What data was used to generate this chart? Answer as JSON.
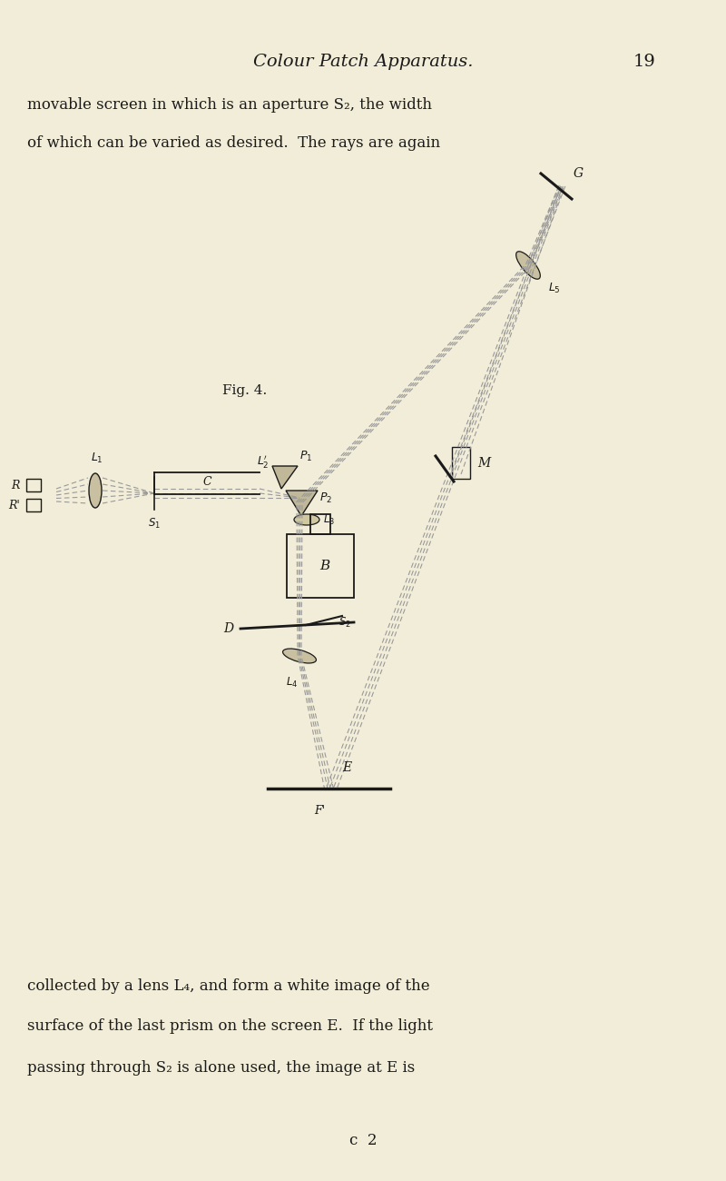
{
  "bg_color": "#f2edd8",
  "line_color": "#1a1a1a",
  "dashed_color": "#999999",
  "title_italic": "Colour Patch Apparatus.",
  "page_number": "19",
  "fig4_label": "Fig. 4.",
  "text_line1": "movable screen in which is an aperture S₂, the width",
  "text_line2": "of which can be varied as desired.  The rays are again",
  "bottom_text_lines": [
    "collected by a lens L₄, and form a white image of the",
    "surface of the last prism on the screen E.  If the light",
    "passing through S₂ is alone used, the image at E is"
  ],
  "footer_text": "c  2"
}
